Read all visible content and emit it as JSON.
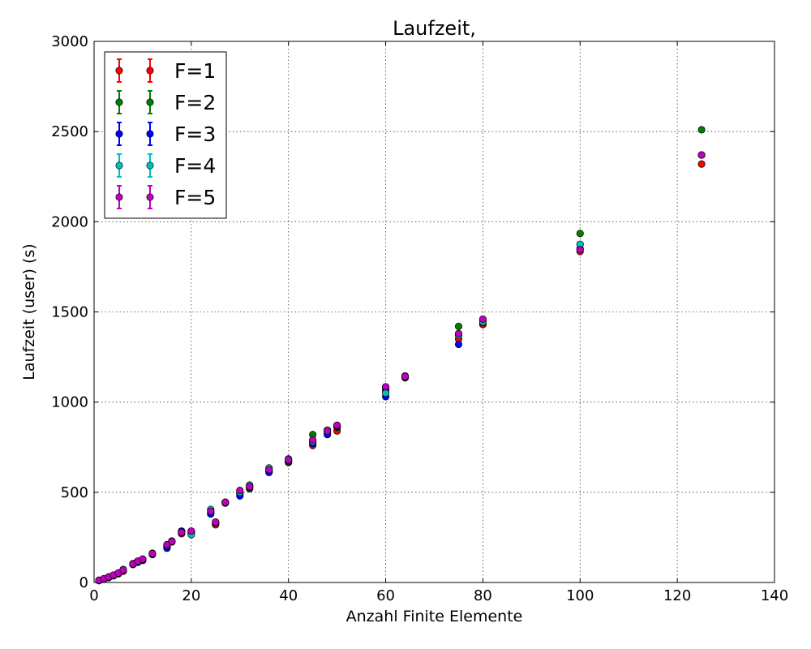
{
  "chart_data": {
    "type": "scatter",
    "title": "Laufzeit,",
    "xlabel": "Anzahl Finite Elemente",
    "ylabel": "Laufzeit (user) (s)",
    "xlim": [
      0,
      140
    ],
    "ylim": [
      0,
      3000
    ],
    "xticks": [
      0,
      20,
      40,
      60,
      80,
      100,
      120,
      140
    ],
    "yticks": [
      0,
      500,
      1000,
      1500,
      2000,
      2500,
      3000
    ],
    "x_tick_labels": [
      "0",
      "20",
      "40",
      "60",
      "80",
      "100",
      "120",
      "140"
    ],
    "y_tick_labels": [
      "0",
      "500",
      "1000",
      "1500",
      "2000",
      "2500",
      "3000"
    ],
    "grid": true,
    "legend_position": "top-left",
    "series": [
      {
        "name": "F=1",
        "color": "#ff0000",
        "x": [
          1,
          2,
          3,
          4,
          5,
          6,
          8,
          9,
          10,
          12,
          15,
          16,
          18,
          20,
          24,
          25,
          27,
          30,
          32,
          36,
          40,
          45,
          48,
          50,
          60,
          64,
          75,
          80,
          100,
          125
        ],
        "y": [
          10,
          18,
          27,
          37,
          48,
          62,
          100,
          115,
          125,
          155,
          195,
          225,
          270,
          280,
          385,
          320,
          440,
          490,
          520,
          615,
          665,
          760,
          830,
          840,
          1065,
          1140,
          1350,
          1430,
          1835,
          2320
        ]
      },
      {
        "name": "F=2",
        "color": "#008000",
        "x": [
          1,
          2,
          3,
          4,
          5,
          6,
          8,
          9,
          10,
          12,
          15,
          16,
          18,
          20,
          24,
          25,
          27,
          30,
          32,
          36,
          40,
          45,
          48,
          50,
          60,
          64,
          75,
          80,
          100,
          125
        ],
        "y": [
          12,
          20,
          30,
          40,
          52,
          68,
          102,
          118,
          128,
          160,
          200,
          228,
          275,
          275,
          390,
          330,
          445,
          495,
          525,
          620,
          670,
          820,
          840,
          860,
          1080,
          1135,
          1420,
          1440,
          1935,
          2510
        ]
      },
      {
        "name": "F=3",
        "color": "#0000ff",
        "x": [
          1,
          2,
          3,
          4,
          5,
          6,
          8,
          9,
          10,
          12,
          15,
          16,
          18,
          20,
          24,
          25,
          27,
          30,
          32,
          36,
          40,
          45,
          48,
          50,
          60,
          64,
          75,
          80,
          100,
          125
        ],
        "y": [
          11,
          19,
          28,
          38,
          50,
          70,
          100,
          112,
          122,
          158,
          190,
          225,
          285,
          280,
          380,
          330,
          442,
          480,
          530,
          610,
          675,
          770,
          820,
          865,
          1030,
          1140,
          1320,
          1455,
          1850,
          2370
        ]
      },
      {
        "name": "F=4",
        "color": "#00bfbf",
        "x": [
          1,
          2,
          3,
          4,
          5,
          6,
          8,
          9,
          10,
          12,
          15,
          16,
          18,
          20,
          24,
          25,
          27,
          30,
          32,
          36,
          40,
          45,
          48,
          50,
          60,
          64,
          75,
          80,
          100,
          125
        ],
        "y": [
          12,
          20,
          30,
          40,
          52,
          72,
          105,
          118,
          128,
          162,
          205,
          230,
          280,
          265,
          405,
          335,
          445,
          500,
          540,
          635,
          685,
          780,
          845,
          870,
          1050,
          1145,
          1370,
          1445,
          1875,
          2370
        ]
      },
      {
        "name": "F=5",
        "color": "#bf00bf",
        "x": [
          1,
          2,
          3,
          4,
          5,
          6,
          8,
          9,
          10,
          12,
          15,
          16,
          18,
          20,
          24,
          25,
          27,
          30,
          32,
          36,
          40,
          45,
          48,
          50,
          60,
          64,
          75,
          80,
          100,
          125
        ],
        "y": [
          12,
          21,
          31,
          41,
          53,
          70,
          103,
          118,
          130,
          160,
          210,
          228,
          278,
          285,
          395,
          335,
          445,
          510,
          532,
          625,
          680,
          790,
          840,
          872,
          1085,
          1142,
          1380,
          1460,
          1845,
          2370
        ]
      }
    ]
  }
}
